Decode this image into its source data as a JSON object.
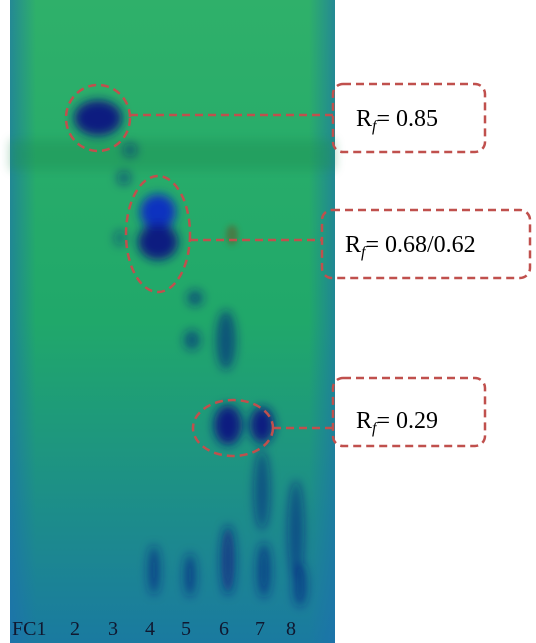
{
  "lanes": [
    "FC1",
    "2",
    "3",
    "4",
    "5",
    "6",
    "7",
    "8"
  ],
  "annotations": [
    {
      "symbol": "R",
      "subscript": "f",
      "text": "= 0.85"
    },
    {
      "symbol": "R",
      "subscript": "f",
      "text": "= 0.68/0.62"
    },
    {
      "symbol": "R",
      "subscript": "f",
      "text": "= 0.29"
    }
  ]
}
